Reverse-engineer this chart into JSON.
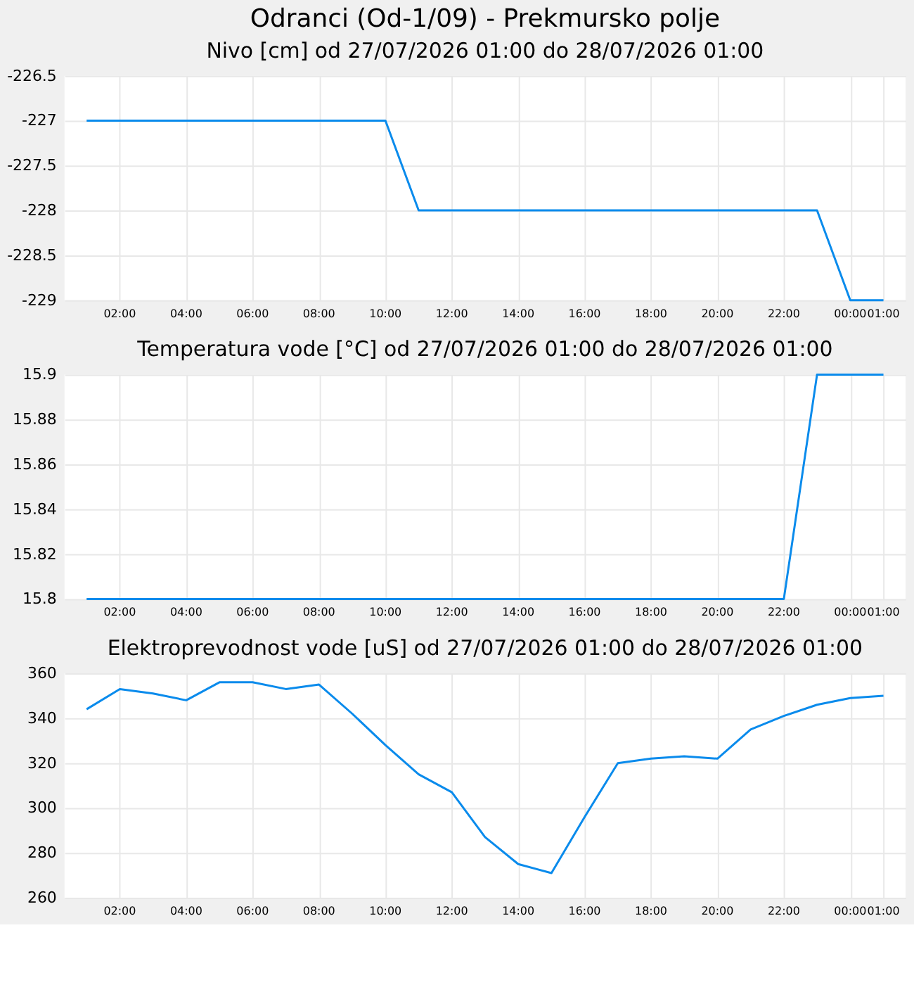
{
  "chart_data": [
    {
      "type": "line",
      "title": "Odranci (Od-1/09) - Prekmursko polje",
      "subtitle": "Nivo [cm] od 27/07/2026 01:00 do 28/07/2026 01:00",
      "x": [
        "2026-07-27T01:00",
        "2026-07-27T02:00",
        "2026-07-27T03:00",
        "2026-07-27T04:00",
        "2026-07-27T05:00",
        "2026-07-27T06:00",
        "2026-07-27T07:00",
        "2026-07-27T08:00",
        "2026-07-27T09:00",
        "2026-07-27T10:00",
        "2026-07-27T11:00",
        "2026-07-27T12:00",
        "2026-07-27T13:00",
        "2026-07-27T14:00",
        "2026-07-27T15:00",
        "2026-07-27T16:00",
        "2026-07-27T17:00",
        "2026-07-27T18:00",
        "2026-07-27T19:00",
        "2026-07-27T20:00",
        "2026-07-27T21:00",
        "2026-07-27T22:00",
        "2026-07-27T23:00",
        "2026-07-28T00:00",
        "2026-07-28T01:00"
      ],
      "values": [
        -227,
        -227,
        -227,
        -227,
        -227,
        -227,
        -227,
        -227,
        -227,
        -227,
        -228,
        -228,
        -228,
        -228,
        -228,
        -228,
        -228,
        -228,
        -228,
        -228,
        -228,
        -228,
        -228,
        -229,
        -229
      ],
      "color": "#0a8bec",
      "xlim": [
        "2026-07-27T00:20",
        "2026-07-28T01:40"
      ],
      "xticks": [
        {
          "value": "2026-07-27T02:00",
          "label": "02:00"
        },
        {
          "value": "2026-07-27T04:00",
          "label": "04:00"
        },
        {
          "value": "2026-07-27T06:00",
          "label": "06:00"
        },
        {
          "value": "2026-07-27T08:00",
          "label": "08:00"
        },
        {
          "value": "2026-07-27T10:00",
          "label": "10:00"
        },
        {
          "value": "2026-07-27T12:00",
          "label": "12:00"
        },
        {
          "value": "2026-07-27T14:00",
          "label": "14:00"
        },
        {
          "value": "2026-07-27T16:00",
          "label": "16:00"
        },
        {
          "value": "2026-07-27T18:00",
          "label": "18:00"
        },
        {
          "value": "2026-07-27T20:00",
          "label": "20:00"
        },
        {
          "value": "2026-07-27T22:00",
          "label": "22:00"
        },
        {
          "value": "2026-07-28T00:00",
          "label": "00:00"
        },
        {
          "value": "2026-07-28T01:00",
          "label": "01:00"
        }
      ],
      "ylim": [
        -229,
        -226.5
      ],
      "yticks": [
        -229,
        -228.5,
        -228,
        -227.5,
        -227,
        -226.5
      ],
      "grid": true
    },
    {
      "type": "line",
      "title": "Temperatura vode [°C] od 27/07/2026 01:00 do 28/07/2026 01:00",
      "x": [
        "2026-07-27T01:00",
        "2026-07-27T02:00",
        "2026-07-27T03:00",
        "2026-07-27T04:00",
        "2026-07-27T05:00",
        "2026-07-27T06:00",
        "2026-07-27T07:00",
        "2026-07-27T08:00",
        "2026-07-27T09:00",
        "2026-07-27T10:00",
        "2026-07-27T11:00",
        "2026-07-27T12:00",
        "2026-07-27T13:00",
        "2026-07-27T14:00",
        "2026-07-27T15:00",
        "2026-07-27T16:00",
        "2026-07-27T17:00",
        "2026-07-27T18:00",
        "2026-07-27T19:00",
        "2026-07-27T20:00",
        "2026-07-27T21:00",
        "2026-07-27T22:00",
        "2026-07-27T23:00",
        "2026-07-28T00:00",
        "2026-07-28T01:00"
      ],
      "values": [
        15.8,
        15.8,
        15.8,
        15.8,
        15.8,
        15.8,
        15.8,
        15.8,
        15.8,
        15.8,
        15.8,
        15.8,
        15.8,
        15.8,
        15.8,
        15.8,
        15.8,
        15.8,
        15.8,
        15.8,
        15.8,
        15.8,
        15.9,
        15.9,
        15.9
      ],
      "color": "#0a8bec",
      "xlim": [
        "2026-07-27T00:20",
        "2026-07-28T01:40"
      ],
      "xticks": [
        {
          "value": "2026-07-27T02:00",
          "label": "02:00"
        },
        {
          "value": "2026-07-27T04:00",
          "label": "04:00"
        },
        {
          "value": "2026-07-27T06:00",
          "label": "06:00"
        },
        {
          "value": "2026-07-27T08:00",
          "label": "08:00"
        },
        {
          "value": "2026-07-27T10:00",
          "label": "10:00"
        },
        {
          "value": "2026-07-27T12:00",
          "label": "12:00"
        },
        {
          "value": "2026-07-27T14:00",
          "label": "14:00"
        },
        {
          "value": "2026-07-27T16:00",
          "label": "16:00"
        },
        {
          "value": "2026-07-27T18:00",
          "label": "18:00"
        },
        {
          "value": "2026-07-27T20:00",
          "label": "20:00"
        },
        {
          "value": "2026-07-27T22:00",
          "label": "22:00"
        },
        {
          "value": "2026-07-28T00:00",
          "label": "00:00"
        },
        {
          "value": "2026-07-28T01:00",
          "label": "01:00"
        }
      ],
      "ylim": [
        15.8,
        15.9
      ],
      "yticks": [
        15.8,
        15.82,
        15.84,
        15.86,
        15.88,
        15.9
      ],
      "grid": true
    },
    {
      "type": "line",
      "title": "Elektroprevodnost vode [uS] od 27/07/2026 01:00 do 28/07/2026 01:00",
      "x": [
        "2026-07-27T01:00",
        "2026-07-27T02:00",
        "2026-07-27T03:00",
        "2026-07-27T04:00",
        "2026-07-27T05:00",
        "2026-07-27T06:00",
        "2026-07-27T07:00",
        "2026-07-27T08:00",
        "2026-07-27T09:00",
        "2026-07-27T10:00",
        "2026-07-27T11:00",
        "2026-07-27T12:00",
        "2026-07-27T13:00",
        "2026-07-27T14:00",
        "2026-07-27T15:00",
        "2026-07-27T16:00",
        "2026-07-27T17:00",
        "2026-07-27T18:00",
        "2026-07-27T19:00",
        "2026-07-27T20:00",
        "2026-07-27T21:00",
        "2026-07-27T22:00",
        "2026-07-27T23:00",
        "2026-07-28T00:00",
        "2026-07-28T01:00"
      ],
      "values": [
        344,
        353,
        351,
        348,
        356,
        356,
        353,
        355,
        342,
        328,
        315,
        307,
        287,
        275,
        271,
        296,
        320,
        322,
        323,
        322,
        335,
        341,
        346,
        349,
        350
      ],
      "color": "#0a8bec",
      "xlim": [
        "2026-07-27T00:20",
        "2026-07-28T01:40"
      ],
      "xticks": [
        {
          "value": "2026-07-27T02:00",
          "label": "02:00"
        },
        {
          "value": "2026-07-27T04:00",
          "label": "04:00"
        },
        {
          "value": "2026-07-27T06:00",
          "label": "06:00"
        },
        {
          "value": "2026-07-27T08:00",
          "label": "08:00"
        },
        {
          "value": "2026-07-27T10:00",
          "label": "10:00"
        },
        {
          "value": "2026-07-27T12:00",
          "label": "12:00"
        },
        {
          "value": "2026-07-27T14:00",
          "label": "14:00"
        },
        {
          "value": "2026-07-27T16:00",
          "label": "16:00"
        },
        {
          "value": "2026-07-27T18:00",
          "label": "18:00"
        },
        {
          "value": "2026-07-27T20:00",
          "label": "20:00"
        },
        {
          "value": "2026-07-27T22:00",
          "label": "22:00"
        },
        {
          "value": "2026-07-28T00:00",
          "label": "00:00"
        },
        {
          "value": "2026-07-28T01:00",
          "label": "01:00"
        }
      ],
      "ylim": [
        260,
        360
      ],
      "yticks": [
        260,
        280,
        300,
        320,
        340,
        360
      ],
      "grid": true
    }
  ]
}
